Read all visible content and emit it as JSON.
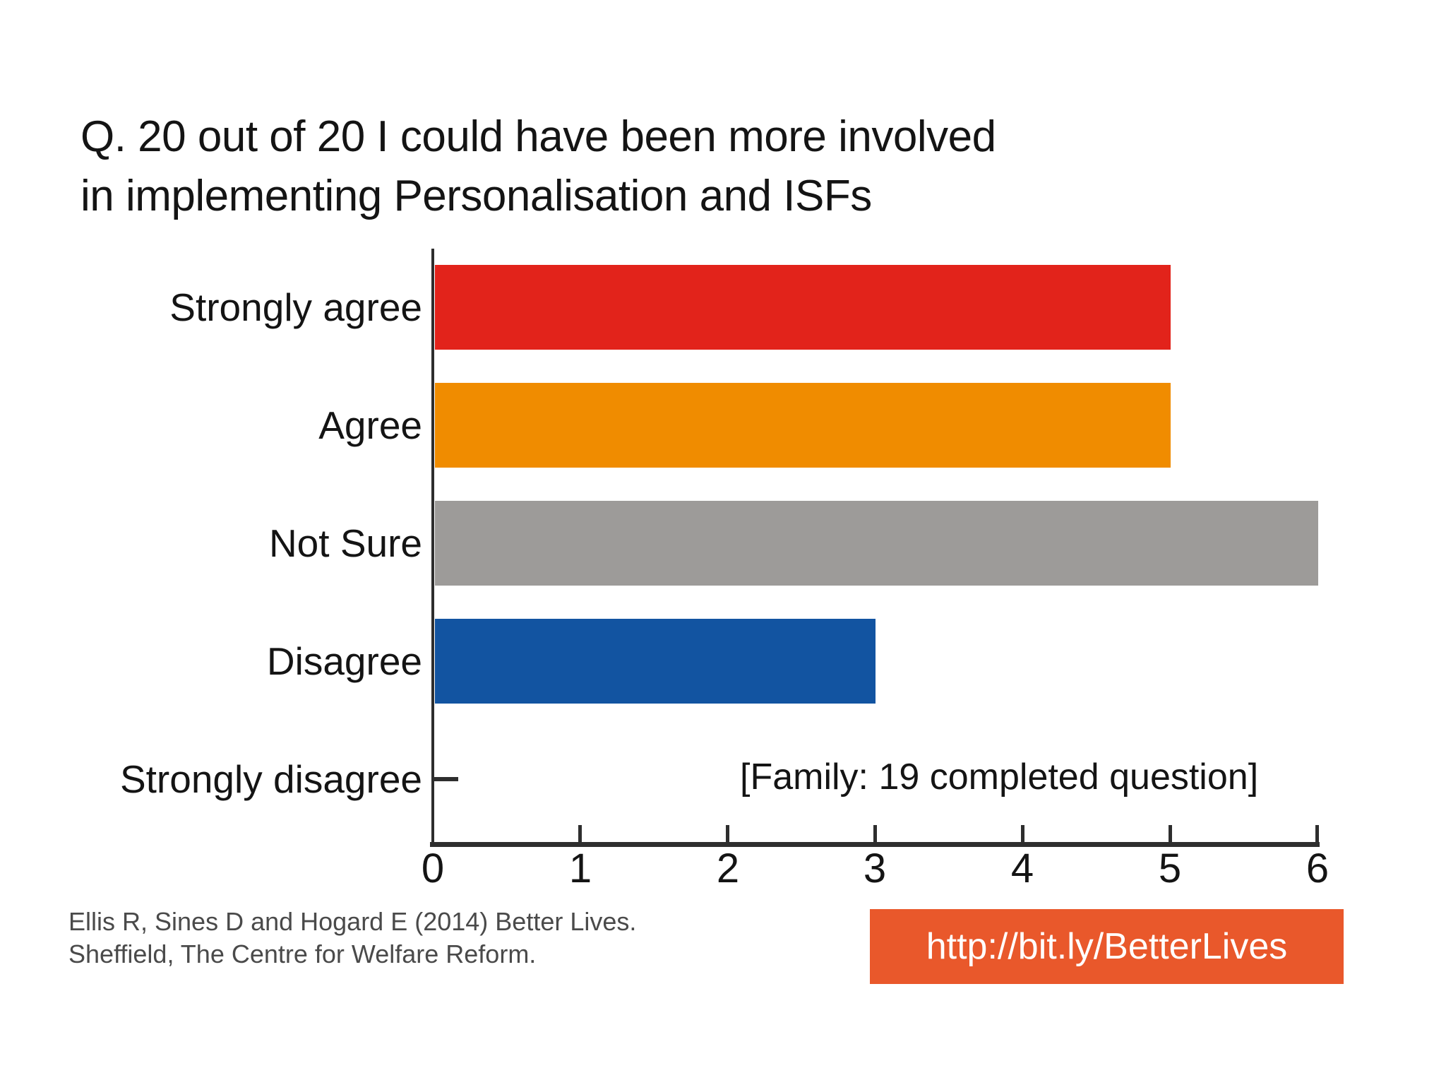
{
  "title": {
    "line1": "Q. 20 out of 20 I could have been more involved",
    "line2": "in implementing Personalisation and ISFs"
  },
  "chart_data": {
    "type": "bar",
    "orientation": "horizontal",
    "title": "Q. 20 out of 20 I could have been more involved in implementing Personalisation and ISFs",
    "categories": [
      "Strongly agree",
      "Agree",
      "Not Sure",
      "Disagree",
      "Strongly disagree"
    ],
    "values": [
      5,
      5,
      6,
      3,
      0
    ],
    "colors": [
      "#e2231b",
      "#f08c00",
      "#9d9b99",
      "#1254a1",
      null
    ],
    "xlabel": "",
    "ylabel": "",
    "xlim": [
      0,
      6
    ],
    "xticks": [
      "0",
      "1",
      "2",
      "3",
      "4",
      "5",
      "6"
    ],
    "grid": false,
    "legend": false,
    "annotation": "[Family: 19 completed question]",
    "axis_color": "#2e2e2e"
  },
  "footer": {
    "line1": "Ellis R, Sines D and Hogard E (2014) Better Lives.",
    "line2": "Sheffield, The Centre for Welfare Reform."
  },
  "badge": {
    "label": "http://bit.ly/BetterLives",
    "background": "#e9582b",
    "text_color": "#ffffff"
  }
}
